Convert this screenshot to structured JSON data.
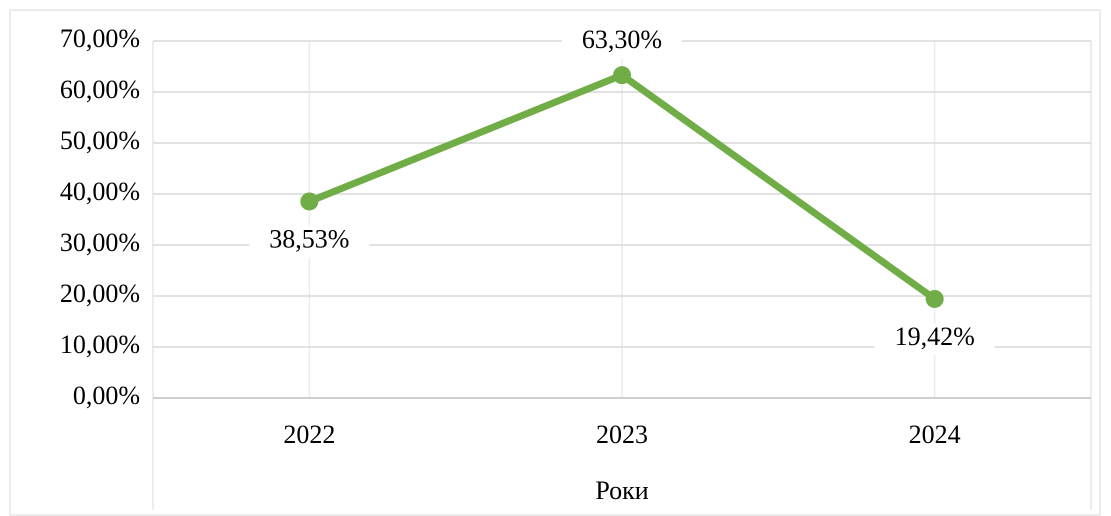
{
  "chart_data": {
    "type": "line",
    "x_label": "Роки",
    "categories": [
      "2022",
      "2023",
      "2024"
    ],
    "series": [
      {
        "name": "Series 1",
        "color": "#70ad47",
        "values": [
          38.53,
          63.3,
          19.42
        ],
        "value_labels": [
          "38,53%",
          "63,30%",
          "19,42%"
        ]
      }
    ],
    "ylim": [
      0,
      70
    ],
    "yticks": [
      {
        "value": 0,
        "label": "0,00%"
      },
      {
        "value": 10,
        "label": "10,00%"
      },
      {
        "value": 20,
        "label": "20,00%"
      },
      {
        "value": 30,
        "label": "30,00%"
      },
      {
        "value": 40,
        "label": "40,00%"
      },
      {
        "value": 50,
        "label": "50,00%"
      },
      {
        "value": 60,
        "label": "60,00%"
      },
      {
        "value": 70,
        "label": "70,00%"
      }
    ],
    "grid": true
  }
}
